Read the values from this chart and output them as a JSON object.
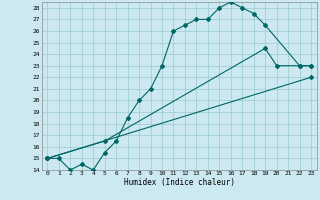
{
  "xlabel": "Humidex (Indice chaleur)",
  "background_color": "#cce8f0",
  "grid_color": "#99cccc",
  "line_color": "#006666",
  "xlim": [
    -0.5,
    23.5
  ],
  "ylim": [
    14,
    28.5
  ],
  "yticks": [
    14,
    15,
    16,
    17,
    18,
    19,
    20,
    21,
    22,
    23,
    24,
    25,
    26,
    27,
    28
  ],
  "xticks": [
    0,
    1,
    2,
    3,
    4,
    5,
    6,
    7,
    8,
    9,
    10,
    11,
    12,
    13,
    14,
    15,
    16,
    17,
    18,
    19,
    20,
    21,
    22,
    23
  ],
  "line1_x": [
    0,
    1,
    2,
    3,
    4,
    5,
    6,
    7,
    8,
    9,
    10,
    11,
    12,
    13,
    14,
    15,
    16,
    17,
    18,
    19,
    22,
    23
  ],
  "line1_y": [
    15,
    15,
    14,
    14.5,
    14,
    15.5,
    16.5,
    18.5,
    20,
    21,
    23,
    26,
    26.5,
    27,
    27,
    28,
    28.5,
    28,
    27.5,
    26.5,
    23,
    23
  ],
  "line2_x": [
    0,
    5,
    19,
    20,
    22,
    23
  ],
  "line2_y": [
    15,
    16.5,
    24.5,
    23,
    23,
    23
  ],
  "line3_x": [
    0,
    23
  ],
  "line3_y": [
    15,
    22
  ]
}
